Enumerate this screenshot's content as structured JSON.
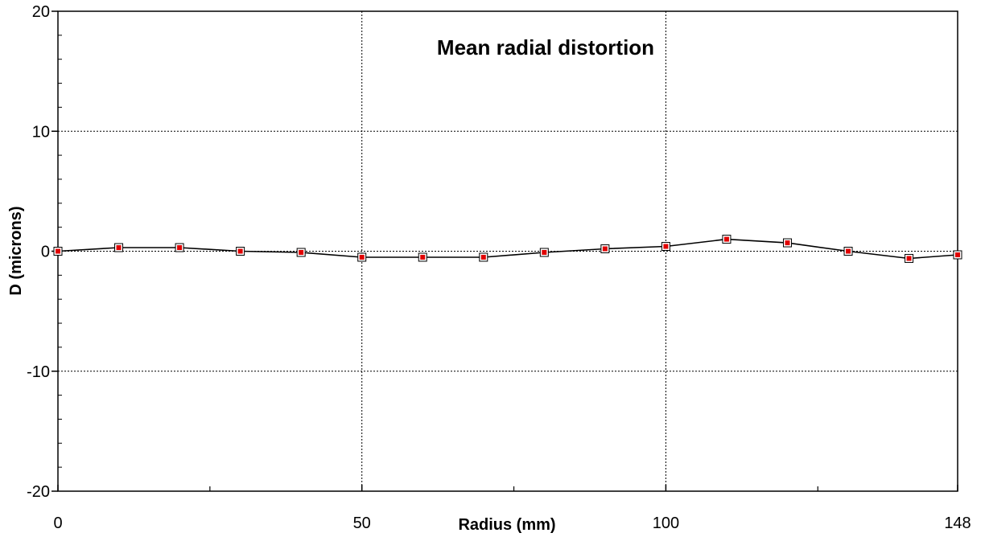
{
  "chart_data": {
    "type": "line",
    "title": "Mean radial distortion",
    "xlabel": "Radius (mm)",
    "ylabel": "D (microns)",
    "xlim": [
      0,
      148
    ],
    "ylim": [
      -20,
      20
    ],
    "x_ticks": [
      0,
      50,
      100,
      148
    ],
    "x_tick_labels": [
      "0",
      "50",
      "100",
      "148"
    ],
    "x_minor_ticks": [
      25,
      75,
      125
    ],
    "y_ticks": [
      -20,
      -10,
      0,
      10,
      20
    ],
    "y_tick_labels": [
      "-20",
      "-10",
      "0",
      "10",
      "20"
    ],
    "y_minor_step": 2,
    "grid": true,
    "legend": "none",
    "series": [
      {
        "x": [
          0,
          10,
          20,
          30,
          40,
          50,
          60,
          70,
          80,
          90,
          100,
          110,
          120,
          130,
          140,
          148
        ],
        "y": [
          0,
          0.3,
          0.3,
          0,
          -0.1,
          -0.5,
          -0.5,
          -0.5,
          -0.1,
          0.2,
          0.4,
          1.0,
          0.7,
          0,
          -0.6,
          -0.3
        ],
        "line_color": "#000000",
        "marker_color": "#e00000"
      }
    ]
  }
}
